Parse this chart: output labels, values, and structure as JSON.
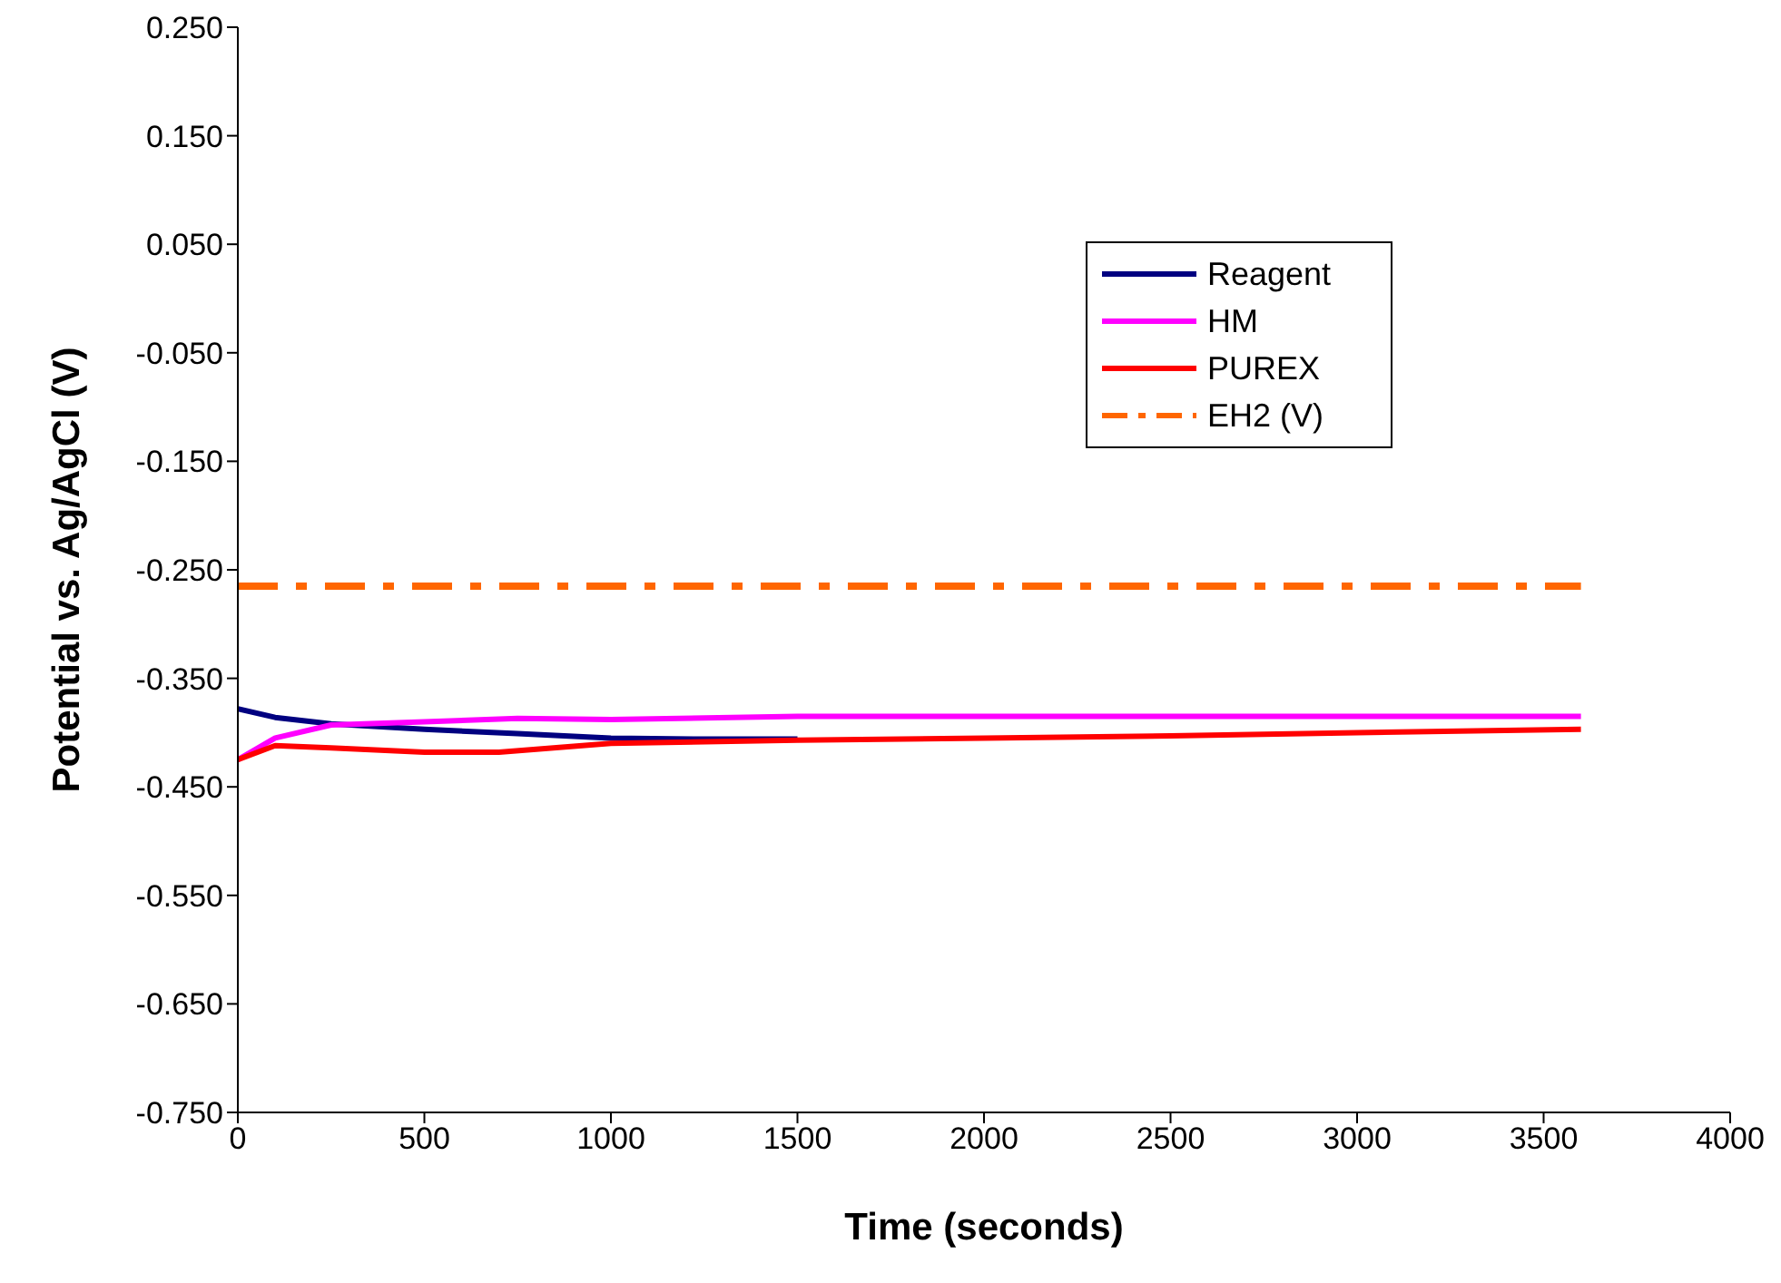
{
  "chart_data": {
    "type": "line",
    "xlabel": "Time (seconds)",
    "ylabel": "Potential vs. Ag/AgCl (V)",
    "xlim": [
      0,
      4000
    ],
    "xticks": [
      0,
      500,
      1000,
      1500,
      2000,
      2500,
      3000,
      3500,
      4000
    ],
    "ylim": [
      -0.75,
      0.25
    ],
    "yticks": [
      {
        "value": 0.25,
        "label": "0.250"
      },
      {
        "value": 0.15,
        "label": "0.150"
      },
      {
        "value": 0.05,
        "label": "0.050"
      },
      {
        "value": -0.05,
        "label": "-0.050"
      },
      {
        "value": -0.15,
        "label": "-0.150"
      },
      {
        "value": -0.25,
        "label": "-0.250"
      },
      {
        "value": -0.35,
        "label": "-0.350"
      },
      {
        "value": -0.45,
        "label": "-0.450"
      },
      {
        "value": -0.55,
        "label": "-0.550"
      },
      {
        "value": -0.65,
        "label": "-0.650"
      },
      {
        "value": -0.75,
        "label": "-0.750"
      }
    ],
    "grid": false,
    "legend": "top right",
    "marker": "none",
    "series": [
      {
        "name": "Reagent",
        "color": "#000080",
        "line_style": "solid",
        "x": [
          0,
          100,
          250,
          500,
          750,
          1000,
          1250,
          1500
        ],
        "values": [
          -0.378,
          -0.386,
          -0.392,
          -0.397,
          -0.401,
          -0.405,
          -0.406,
          -0.406
        ]
      },
      {
        "name": "HM",
        "color": "#ff00ff",
        "line_style": "solid",
        "x": [
          0,
          100,
          250,
          500,
          750,
          1000,
          1500,
          2000,
          2500,
          3000,
          3600
        ],
        "values": [
          -0.425,
          -0.405,
          -0.393,
          -0.39,
          -0.387,
          -0.388,
          -0.385,
          -0.385,
          -0.385,
          -0.385,
          -0.385
        ]
      },
      {
        "name": "PUREX",
        "color": "#ff0000",
        "line_style": "solid",
        "x": [
          0,
          100,
          250,
          500,
          700,
          1000,
          1500,
          2000,
          2500,
          3000,
          3600
        ],
        "values": [
          -0.425,
          -0.412,
          -0.414,
          -0.418,
          -0.418,
          -0.41,
          -0.407,
          -0.405,
          -0.403,
          -0.4,
          -0.397
        ]
      },
      {
        "name": "EH2 (V)",
        "color": "#ff6600",
        "line_style": "dashed",
        "x": [
          0,
          3600
        ],
        "values": [
          -0.265,
          -0.265
        ]
      }
    ]
  }
}
